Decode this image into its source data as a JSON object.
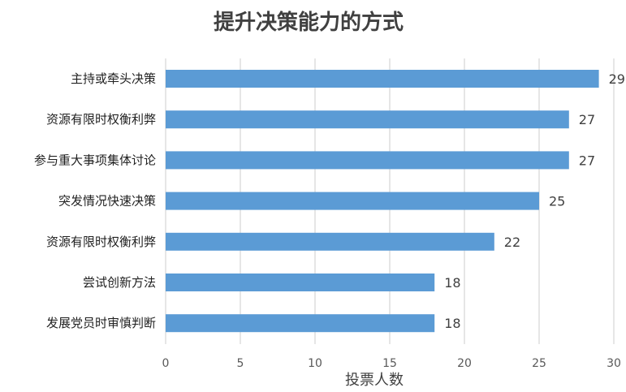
{
  "chart_data": {
    "type": "bar",
    "orientation": "horizontal",
    "title": "提升决策能力的方式",
    "xlabel": "投票人数",
    "ylabel": "",
    "categories": [
      "主持或牵头决策",
      "资源有限时权衡利弊",
      "参与重大事项集体讨论",
      "突发情况快速决策",
      "资源有限时权衡利弊",
      "尝试创新方法",
      "发展党员时审慎判断"
    ],
    "values": [
      29,
      27,
      27,
      25,
      22,
      18,
      18
    ],
    "xlim": [
      0,
      30
    ],
    "xticks": [
      0,
      5,
      10,
      15,
      20,
      25,
      30
    ],
    "grid": "vertical",
    "data_labels": true,
    "legend": "none",
    "bar_color": "#5b9bd5"
  }
}
